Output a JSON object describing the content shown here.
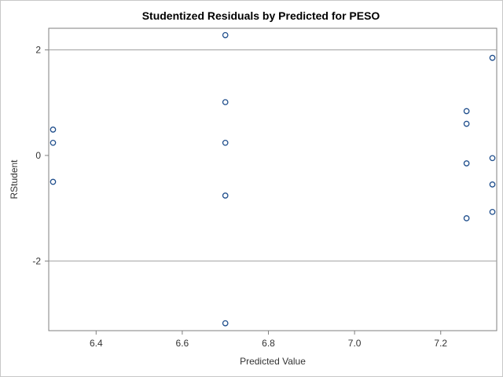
{
  "chart_data": {
    "type": "scatter",
    "title": "Studentized Residuals by Predicted for PESO",
    "xlabel": "Predicted Value",
    "ylabel": "RStudent",
    "xlim": [
      6.29,
      7.33
    ],
    "ylim": [
      -3.32,
      2.41
    ],
    "x_ticks": [
      6.4,
      6.6,
      6.8,
      7.0,
      7.2
    ],
    "x_tick_labels": [
      "6.4",
      "6.6",
      "6.8",
      "7.0",
      "7.2"
    ],
    "y_ticks": [
      2,
      0,
      -2
    ],
    "y_tick_labels": [
      "2",
      "0",
      "-2"
    ],
    "reference_lines_y": [
      2,
      -2
    ],
    "grid": false,
    "marker": "open-circle",
    "marker_color": "#1f4e8c",
    "reference_line_color": "#a0a0a0",
    "series": [
      {
        "points": [
          {
            "x": 6.3,
            "y": 0.49
          },
          {
            "x": 6.3,
            "y": 0.24
          },
          {
            "x": 6.3,
            "y": -0.5
          },
          {
            "x": 6.7,
            "y": 2.28
          },
          {
            "x": 6.7,
            "y": 1.01
          },
          {
            "x": 6.7,
            "y": 0.24
          },
          {
            "x": 6.7,
            "y": -0.76
          },
          {
            "x": 6.7,
            "y": -3.18
          },
          {
            "x": 7.26,
            "y": 0.84
          },
          {
            "x": 7.26,
            "y": 0.6
          },
          {
            "x": 7.26,
            "y": -0.15
          },
          {
            "x": 7.26,
            "y": -1.19
          },
          {
            "x": 7.32,
            "y": 1.85
          },
          {
            "x": 7.32,
            "y": -0.05
          },
          {
            "x": 7.32,
            "y": -0.55
          },
          {
            "x": 7.32,
            "y": -1.07
          }
        ]
      }
    ]
  }
}
